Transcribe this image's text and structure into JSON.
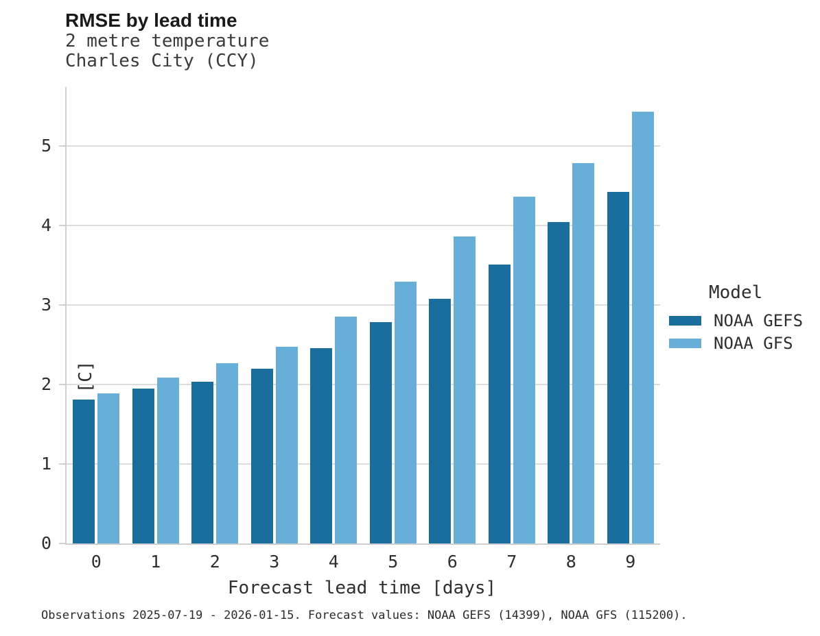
{
  "chart_data": {
    "type": "bar",
    "title": "RMSE by lead time",
    "subtitle_lines": [
      "2 metre temperature",
      "Charles City (CCY)"
    ],
    "xlabel": "Forecast lead time [days]",
    "ylabel": "RMSE [C]",
    "categories": [
      "0",
      "1",
      "2",
      "3",
      "4",
      "5",
      "6",
      "7",
      "8",
      "9"
    ],
    "series": [
      {
        "name": "NOAA GEFS",
        "color": "#196e9e",
        "values": [
          1.81,
          1.95,
          2.03,
          2.2,
          2.46,
          2.78,
          3.08,
          3.51,
          4.04,
          4.42
        ]
      },
      {
        "name": "NOAA GFS",
        "color": "#67aed8",
        "values": [
          1.89,
          2.09,
          2.27,
          2.47,
          2.85,
          3.29,
          3.86,
          4.36,
          4.78,
          5.43
        ]
      }
    ],
    "ylim": [
      0,
      5.74
    ],
    "yticks": [
      0,
      1,
      2,
      3,
      4,
      5
    ],
    "grid": "horizontal",
    "legend_title": "Model",
    "legend_position": "right",
    "caption": "Observations 2025-07-19 - 2026-01-15. Forecast values: NOAA GEFS (14399), NOAA GFS (115200)."
  }
}
